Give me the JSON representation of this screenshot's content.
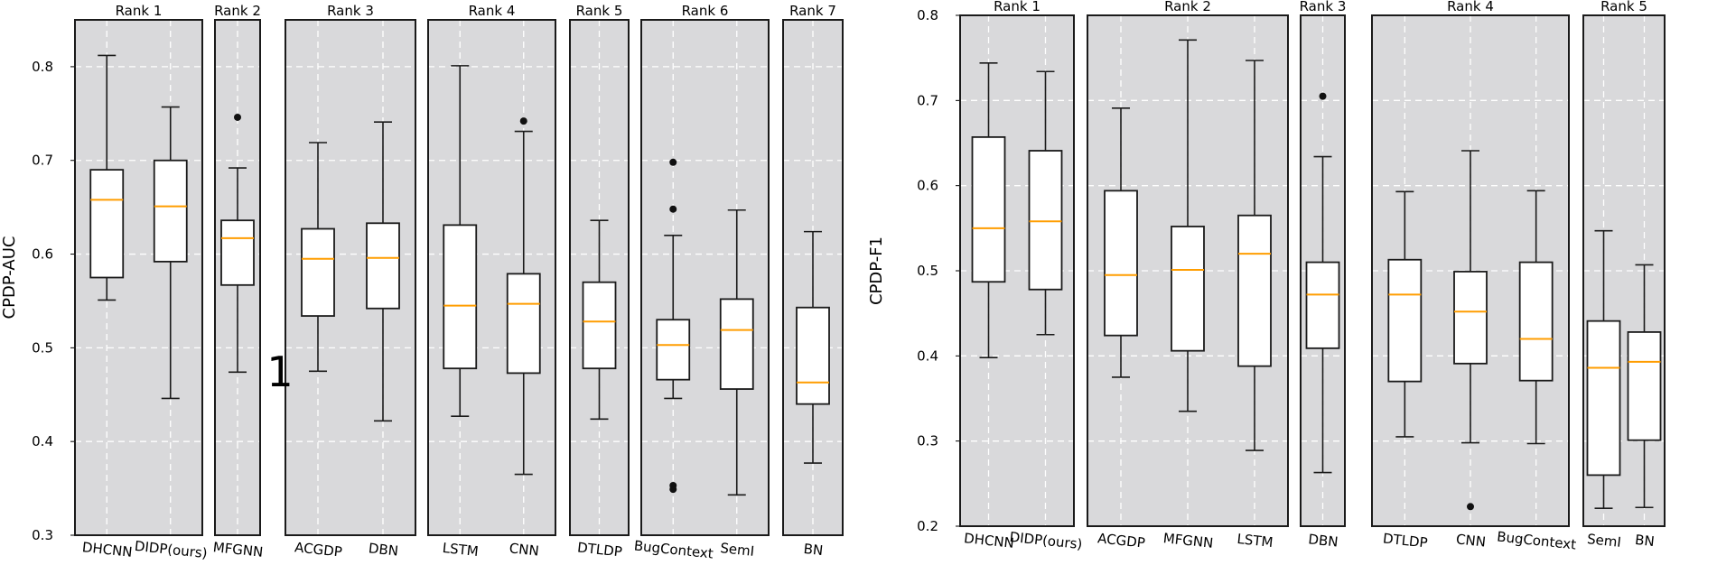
{
  "colors": {
    "panel_bg": "#d9d9db",
    "grid": "#ffffff",
    "box_fill": "#ffffff",
    "box_edge": "#1a1a1a",
    "median": "#ff9d00",
    "text": "#000000"
  },
  "stray_text": "1",
  "chart_data": [
    {
      "type": "boxplot",
      "ylabel": "CPDP-AUC",
      "ylim": [
        0.3,
        0.85
      ],
      "yticks": [
        0.3,
        0.4,
        0.5,
        0.6,
        0.7,
        0.8
      ],
      "groups": [
        {
          "title": "Rank 1",
          "boxes": [
            {
              "label": "DHCNN",
              "whislo": 0.551,
              "q1": 0.575,
              "med": 0.658,
              "q3": 0.69,
              "whishi": 0.812,
              "fliers": []
            },
            {
              "label": "DIDP(ours)",
              "whislo": 0.446,
              "q1": 0.592,
              "med": 0.651,
              "q3": 0.7,
              "whishi": 0.757,
              "fliers": []
            }
          ]
        },
        {
          "title": "Rank 2",
          "boxes": [
            {
              "label": "MFGNN",
              "whislo": 0.474,
              "q1": 0.567,
              "med": 0.617,
              "q3": 0.636,
              "whishi": 0.692,
              "fliers": [
                0.746
              ]
            }
          ]
        },
        {
          "title": "Rank 3",
          "boxes": [
            {
              "label": "ACGDP",
              "whislo": 0.475,
              "q1": 0.534,
              "med": 0.595,
              "q3": 0.627,
              "whishi": 0.719,
              "fliers": []
            },
            {
              "label": "DBN",
              "whislo": 0.422,
              "q1": 0.542,
              "med": 0.596,
              "q3": 0.633,
              "whishi": 0.741,
              "fliers": []
            }
          ]
        },
        {
          "title": "Rank 4",
          "boxes": [
            {
              "label": "LSTM",
              "whislo": 0.427,
              "q1": 0.478,
              "med": 0.545,
              "q3": 0.631,
              "whishi": 0.801,
              "fliers": []
            },
            {
              "label": "CNN",
              "whislo": 0.365,
              "q1": 0.473,
              "med": 0.547,
              "q3": 0.579,
              "whishi": 0.731,
              "fliers": [
                0.742
              ]
            }
          ]
        },
        {
          "title": "Rank 5",
          "boxes": [
            {
              "label": "DTLDP",
              "whislo": 0.424,
              "q1": 0.478,
              "med": 0.528,
              "q3": 0.57,
              "whishi": 0.636,
              "fliers": []
            }
          ]
        },
        {
          "title": "Rank 6",
          "boxes": [
            {
              "label": "BugContext",
              "whislo": 0.446,
              "q1": 0.466,
              "med": 0.503,
              "q3": 0.53,
              "whishi": 0.62,
              "fliers": [
                0.698,
                0.648,
                0.353,
                0.349
              ]
            },
            {
              "label": "SemI",
              "whislo": 0.343,
              "q1": 0.456,
              "med": 0.519,
              "q3": 0.552,
              "whishi": 0.647,
              "fliers": []
            }
          ]
        },
        {
          "title": "Rank 7",
          "boxes": [
            {
              "label": "BN",
              "whislo": 0.377,
              "q1": 0.44,
              "med": 0.463,
              "q3": 0.543,
              "whishi": 0.624,
              "fliers": []
            }
          ]
        }
      ]
    },
    {
      "type": "boxplot",
      "ylabel": "CPDP-F1",
      "ylim": [
        0.2,
        0.8
      ],
      "yticks": [
        0.2,
        0.3,
        0.4,
        0.5,
        0.6,
        0.7,
        0.8
      ],
      "groups": [
        {
          "title": "Rank 1",
          "boxes": [
            {
              "label": "DHCNN",
              "whislo": 0.398,
              "q1": 0.487,
              "med": 0.55,
              "q3": 0.657,
              "whishi": 0.744,
              "fliers": []
            },
            {
              "label": "DIDP(ours)",
              "whislo": 0.425,
              "q1": 0.478,
              "med": 0.558,
              "q3": 0.641,
              "whishi": 0.734,
              "fliers": []
            }
          ]
        },
        {
          "title": "Rank 2",
          "boxes": [
            {
              "label": "ACGDP",
              "whislo": 0.375,
              "q1": 0.424,
              "med": 0.495,
              "q3": 0.594,
              "whishi": 0.691,
              "fliers": []
            },
            {
              "label": "MFGNN",
              "whislo": 0.335,
              "q1": 0.406,
              "med": 0.501,
              "q3": 0.552,
              "whishi": 0.771,
              "fliers": []
            },
            {
              "label": "LSTM",
              "whislo": 0.289,
              "q1": 0.388,
              "med": 0.52,
              "q3": 0.565,
              "whishi": 0.747,
              "fliers": []
            }
          ]
        },
        {
          "title": "Rank 3",
          "boxes": [
            {
              "label": "DBN",
              "whislo": 0.263,
              "q1": 0.409,
              "med": 0.472,
              "q3": 0.51,
              "whishi": 0.634,
              "fliers": [
                0.705
              ]
            }
          ]
        },
        {
          "title": "Rank 4",
          "boxes": [
            {
              "label": "DTLDP",
              "whislo": 0.305,
              "q1": 0.37,
              "med": 0.472,
              "q3": 0.513,
              "whishi": 0.593,
              "fliers": []
            },
            {
              "label": "CNN",
              "whislo": 0.298,
              "q1": 0.391,
              "med": 0.452,
              "q3": 0.499,
              "whishi": 0.641,
              "fliers": [
                0.223
              ]
            },
            {
              "label": "BugContext",
              "whislo": 0.297,
              "q1": 0.371,
              "med": 0.42,
              "q3": 0.51,
              "whishi": 0.594,
              "fliers": []
            }
          ]
        },
        {
          "title": "Rank 5",
          "boxes": [
            {
              "label": "SemI",
              "whislo": 0.221,
              "q1": 0.26,
              "med": 0.386,
              "q3": 0.441,
              "whishi": 0.547,
              "fliers": []
            },
            {
              "label": "BN",
              "whislo": 0.222,
              "q1": 0.301,
              "med": 0.393,
              "q3": 0.428,
              "whishi": 0.507,
              "fliers": []
            }
          ]
        }
      ]
    }
  ]
}
